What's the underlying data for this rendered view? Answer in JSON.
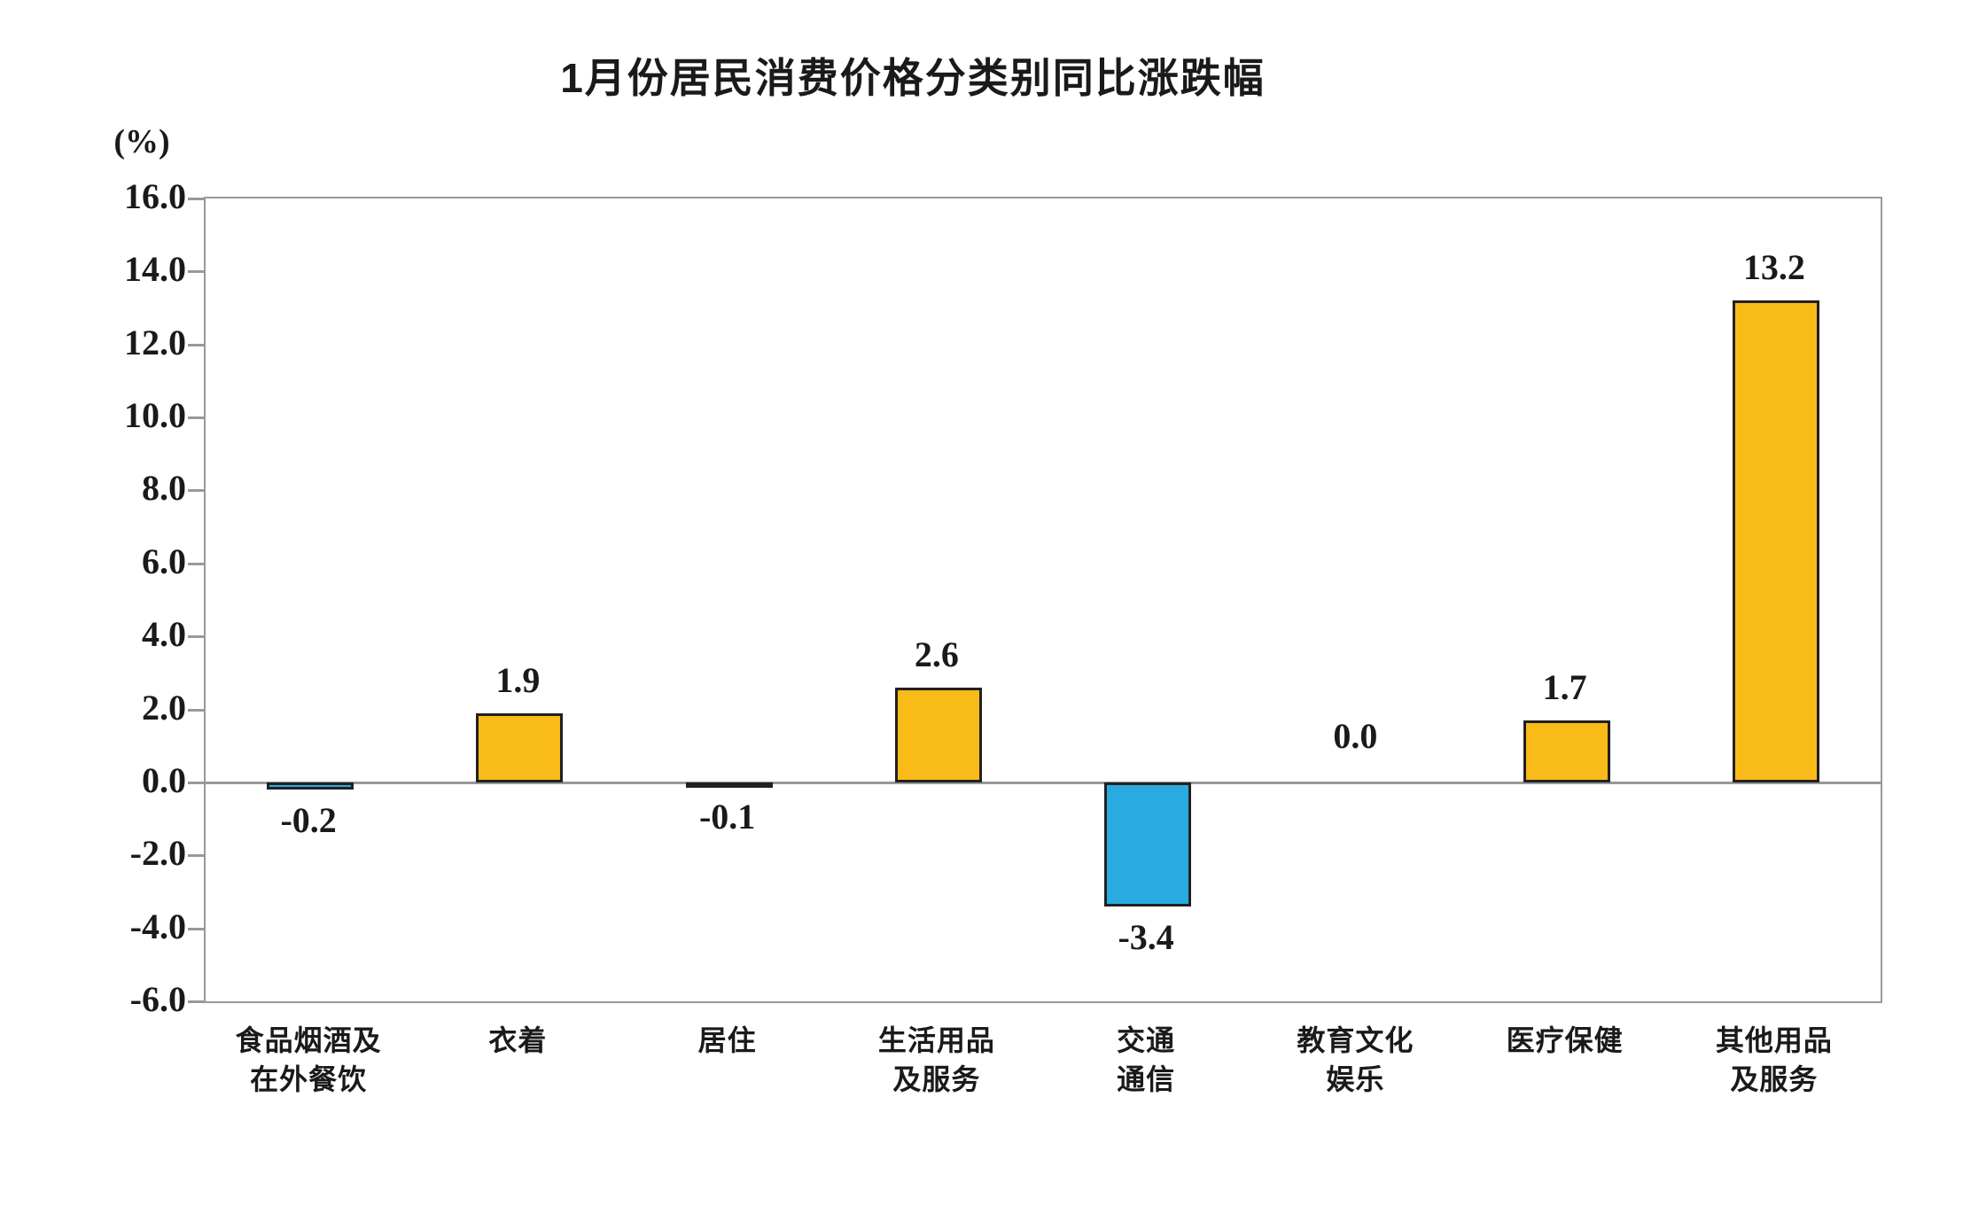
{
  "chart_data": {
    "type": "bar",
    "title": "1月份居民消费价格分类别同比涨跌幅",
    "unit_label": "(%)",
    "categories": [
      "食品烟酒及在外餐饮",
      "衣着",
      "居住",
      "生活用品及服务",
      "交通通信",
      "教育文化娱乐",
      "医疗保健",
      "其他用品及服务"
    ],
    "category_lines": [
      [
        "食品烟酒及",
        "在外餐饮"
      ],
      [
        "衣着"
      ],
      [
        "居住"
      ],
      [
        "生活用品",
        "及服务"
      ],
      [
        "交通",
        "通信"
      ],
      [
        "教育文化",
        "娱乐"
      ],
      [
        "医疗保健"
      ],
      [
        "其他用品",
        "及服务"
      ]
    ],
    "values": [
      -0.2,
      1.9,
      -0.1,
      2.6,
      -3.4,
      0.0,
      1.7,
      13.2
    ],
    "value_labels": [
      "-0.2",
      "1.9",
      "-0.1",
      "2.6",
      "-3.4",
      "0.0",
      "1.7",
      "13.2"
    ],
    "ylim": [
      -6.0,
      16.0
    ],
    "ytick_step": 2.0,
    "ytick_labels": [
      "16.0",
      "14.0",
      "12.0",
      "10.0",
      "8.0",
      "6.0",
      "4.0",
      "2.0",
      "0.0",
      "-2.0",
      "-4.0",
      "-6.0"
    ],
    "xlabel": "",
    "ylabel": "(%)",
    "grid": false,
    "legend": null,
    "colors": {
      "positive_bar": "#F9BB17",
      "negative_bar": "#29ABE2",
      "bar_border": "#231F20",
      "axis": "#999999",
      "text": "#1A1A1A"
    }
  }
}
